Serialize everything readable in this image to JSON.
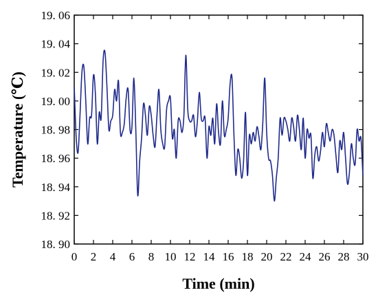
{
  "chart_data": {
    "type": "line",
    "title": "",
    "xlabel": "Time (min)",
    "ylabel": "Temperature (℃)",
    "xlim": [
      0,
      30
    ],
    "ylim": [
      18.9,
      19.06
    ],
    "x_ticks": [
      0,
      2,
      4,
      6,
      8,
      10,
      12,
      14,
      16,
      18,
      20,
      22,
      24,
      26,
      28,
      30
    ],
    "y_ticks": [
      18.9,
      18.92,
      18.94,
      18.96,
      18.98,
      19.0,
      19.02,
      19.04,
      19.06
    ],
    "x_tick_labels": [
      "0",
      "2",
      "4",
      "6",
      "8",
      "10",
      "12",
      "14",
      "16",
      "18",
      "20",
      "22",
      "24",
      "26",
      "28",
      "30"
    ],
    "y_tick_labels": [
      "18. 90",
      "18. 92",
      "18. 94",
      "18. 96",
      "18. 98",
      "19. 00",
      "19. 02",
      "19. 04",
      "19. 06"
    ],
    "grid": false,
    "line_color": "#1f2a8a",
    "series": [
      {
        "x": [
          0.0,
          0.2,
          0.4,
          0.6,
          0.8,
          1.0,
          1.2,
          1.4,
          1.6,
          1.8,
          2.0,
          2.2,
          2.4,
          2.6,
          2.8,
          3.0,
          3.2,
          3.4,
          3.6,
          3.8,
          4.0,
          4.2,
          4.4,
          4.6,
          4.8,
          5.0,
          5.2,
          5.4,
          5.6,
          5.8,
          6.0,
          6.2,
          6.4,
          6.6,
          6.8,
          7.0,
          7.2,
          7.4,
          7.6,
          7.8,
          8.0,
          8.2,
          8.4,
          8.6,
          8.8,
          9.0,
          9.2,
          9.4,
          9.6,
          9.8,
          10.0,
          10.2,
          10.4,
          10.6,
          10.8,
          11.0,
          11.2,
          11.4,
          11.6,
          11.8,
          12.0,
          12.2,
          12.4,
          12.6,
          12.8,
          13.0,
          13.2,
          13.4,
          13.6,
          13.8,
          14.0,
          14.2,
          14.4,
          14.6,
          14.8,
          15.0,
          15.2,
          15.4,
          15.6,
          15.8,
          16.0,
          16.2,
          16.4,
          16.6,
          16.8,
          17.0,
          17.2,
          17.4,
          17.6,
          17.8,
          18.0,
          18.2,
          18.4,
          18.6,
          18.8,
          19.0,
          19.2,
          19.4,
          19.6,
          19.8,
          20.0,
          20.2,
          20.4,
          20.6,
          20.8,
          21.0,
          21.2,
          21.4,
          21.6,
          21.8,
          22.0,
          22.2,
          22.4,
          22.6,
          22.8,
          23.0,
          23.2,
          23.4,
          23.6,
          23.8,
          24.0,
          24.2,
          24.4,
          24.6,
          24.8,
          25.0,
          25.2,
          25.4,
          25.6,
          25.8,
          26.0,
          26.2,
          26.4,
          26.6,
          26.8,
          27.0,
          27.2,
          27.4,
          27.6,
          27.8,
          28.0,
          28.2,
          28.4,
          28.6,
          28.8,
          29.0,
          29.2,
          29.4,
          29.6,
          29.8,
          30.0
        ],
        "y": [
          19.01,
          18.975,
          18.964,
          18.99,
          19.02,
          19.024,
          19.0,
          18.97,
          18.988,
          18.99,
          19.018,
          19.005,
          18.97,
          18.992,
          18.988,
          19.028,
          19.034,
          19.01,
          18.98,
          18.986,
          18.99,
          19.008,
          19.0,
          19.014,
          18.978,
          18.978,
          18.984,
          19.002,
          19.008,
          18.98,
          18.982,
          19.016,
          18.98,
          18.934,
          18.958,
          18.974,
          18.998,
          18.99,
          18.976,
          18.996,
          18.99,
          18.976,
          18.968,
          18.99,
          19.008,
          18.98,
          18.97,
          18.968,
          18.994,
          19.0,
          19.002,
          18.974,
          18.98,
          18.96,
          18.986,
          18.986,
          18.978,
          18.99,
          19.032,
          18.994,
          18.986,
          18.986,
          18.99,
          18.975,
          18.986,
          19.006,
          18.988,
          18.986,
          18.988,
          18.96,
          18.982,
          18.976,
          18.988,
          18.97,
          18.998,
          18.978,
          18.97,
          19.0,
          18.976,
          18.98,
          18.988,
          19.012,
          19.016,
          18.976,
          18.948,
          18.966,
          18.96,
          18.946,
          18.958,
          18.992,
          18.948,
          18.976,
          18.97,
          18.978,
          18.972,
          18.982,
          18.975,
          18.966,
          18.985,
          19.016,
          18.978,
          18.96,
          18.958,
          18.948,
          18.93,
          18.946,
          18.96,
          18.988,
          18.976,
          18.988,
          18.986,
          18.98,
          18.972,
          18.988,
          18.982,
          18.972,
          18.99,
          18.98,
          18.966,
          18.988,
          18.96,
          18.98,
          18.974,
          18.976,
          18.946,
          18.962,
          18.968,
          18.958,
          18.965,
          18.978,
          18.968,
          18.984,
          18.978,
          18.972,
          18.98,
          18.976,
          18.962,
          18.95,
          18.972,
          18.966,
          18.978,
          18.96,
          18.942,
          18.95,
          18.97,
          18.96,
          18.956,
          18.98,
          18.972,
          18.974,
          18.948
        ]
      }
    ]
  }
}
